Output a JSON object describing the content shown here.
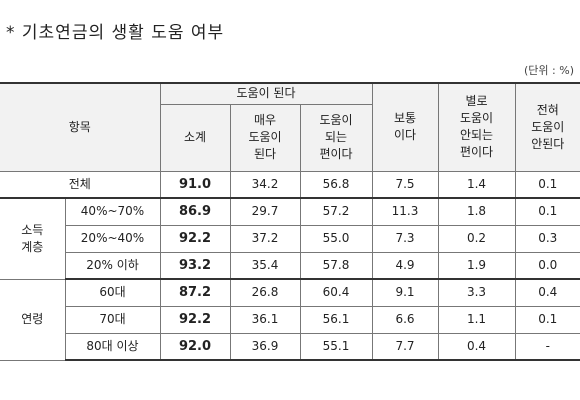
{
  "title": "* 기초연금의 생활 도움 여부",
  "unit": "(단위 : %)",
  "header": {
    "item": "항목",
    "helped": "도움이 된다",
    "columns": [
      [
        "소계"
      ],
      [
        "매우",
        "도움이",
        "된다"
      ],
      [
        "도움이",
        "되는",
        "편이다"
      ],
      [
        "보통",
        "이다"
      ],
      [
        "별로",
        "도움이",
        "안되는",
        "편이다"
      ],
      [
        "전혀",
        "도움이",
        "안된다"
      ]
    ]
  },
  "total": {
    "label": "전체",
    "values": [
      "91.0",
      "34.2",
      "56.8",
      "7.5",
      "1.4",
      "0.1"
    ]
  },
  "groups": [
    {
      "label": [
        "소득",
        "계층"
      ],
      "rows": [
        {
          "label": "40%~70%",
          "values": [
            "86.9",
            "29.7",
            "57.2",
            "11.3",
            "1.8",
            "0.1"
          ]
        },
        {
          "label": "20%~40%",
          "values": [
            "92.2",
            "37.2",
            "55.0",
            "7.3",
            "0.2",
            "0.3"
          ]
        },
        {
          "label": "20% 이하",
          "values": [
            "93.2",
            "35.4",
            "57.8",
            "4.9",
            "1.9",
            "0.0"
          ]
        }
      ]
    },
    {
      "label": [
        "연령"
      ],
      "rows": [
        {
          "label": "60대",
          "values": [
            "87.2",
            "26.8",
            "60.4",
            "9.1",
            "3.3",
            "0.4"
          ]
        },
        {
          "label": "70대",
          "values": [
            "92.2",
            "36.1",
            "56.1",
            "6.6",
            "1.1",
            "0.1"
          ]
        },
        {
          "label": "80대 이상",
          "values": [
            "92.0",
            "36.9",
            "55.1",
            "7.7",
            "0.4",
            "-"
          ]
        }
      ]
    }
  ]
}
